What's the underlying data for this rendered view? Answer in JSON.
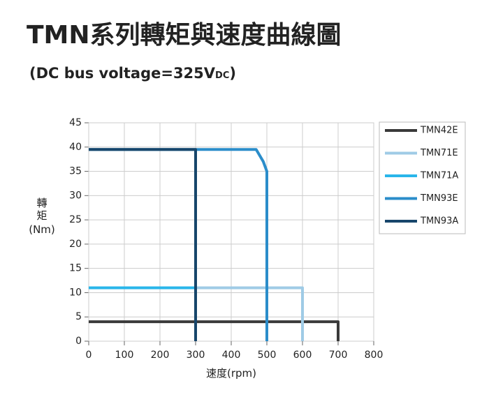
{
  "chart_data": {
    "type": "line",
    "title": "TMN系列轉矩與速度曲線圖",
    "subtitle": [
      "(DC bus voltage=325V",
      "DC",
      ")"
    ],
    "y_label": [
      "轉",
      "矩",
      "(Nm)"
    ],
    "x_label": "速度(rpm)",
    "xlim": [
      0,
      800
    ],
    "xticks": [
      0,
      100,
      200,
      300,
      400,
      500,
      600,
      700,
      800
    ],
    "ylim": [
      0,
      45
    ],
    "yticks": [
      0,
      5,
      10,
      15,
      20,
      25,
      30,
      35,
      40,
      45
    ],
    "grid": true,
    "legend": "right",
    "series": [
      {
        "name": "TMN42E",
        "color": "#3a3a3a",
        "x": [
          0,
          700,
          700
        ],
        "values": [
          4,
          4,
          0
        ]
      },
      {
        "name": "TMN71E",
        "color": "#9fcbe6",
        "x": [
          0,
          600,
          600
        ],
        "values": [
          11,
          11,
          0
        ]
      },
      {
        "name": "TMN71A",
        "color": "#29b6ea",
        "x": [
          0,
          300,
          300
        ],
        "values": [
          11,
          11,
          0
        ]
      },
      {
        "name": "TMN93E",
        "color": "#2b8dca",
        "x": [
          0,
          470,
          490,
          500,
          500
        ],
        "values": [
          39.5,
          39.5,
          37,
          35,
          0
        ]
      },
      {
        "name": "TMN93A",
        "color": "#17466b",
        "x": [
          0,
          300,
          300
        ],
        "values": [
          39.5,
          39.5,
          0
        ]
      }
    ]
  }
}
